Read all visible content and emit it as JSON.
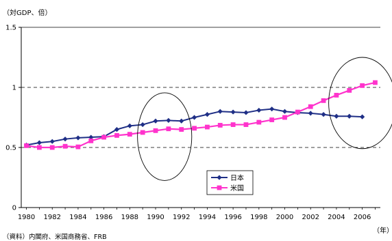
{
  "chart_data": {
    "type": "line",
    "unit_label": "（対GDP、倍）",
    "xlabel": "（年）",
    "source": "（資料）内閣府、米国商務省、FRB",
    "ylim": [
      0,
      1.5
    ],
    "yticks": [
      "0",
      "0.5",
      "1",
      "1.5"
    ],
    "dashed_gridlines": [
      0.5,
      1.0
    ],
    "xlim": [
      1979.6,
      2007.4
    ],
    "xticks": [
      1980,
      1982,
      1984,
      1986,
      1988,
      1990,
      1992,
      1994,
      1996,
      1998,
      2000,
      2002,
      2004,
      2006
    ],
    "legend_position": "center-bottom",
    "series": [
      {
        "name": "日本",
        "color": "#1f2f86",
        "marker": "diamond",
        "x": [
          1980,
          1981,
          1982,
          1983,
          1984,
          1985,
          1986,
          1987,
          1988,
          1989,
          1990,
          1991,
          1992,
          1993,
          1994,
          1995,
          1996,
          1997,
          1998,
          1999,
          2000,
          2001,
          2002,
          2003,
          2004,
          2005,
          2006
        ],
        "values": [
          0.52,
          0.54,
          0.55,
          0.57,
          0.58,
          0.585,
          0.59,
          0.65,
          0.68,
          0.69,
          0.72,
          0.725,
          0.72,
          0.75,
          0.775,
          0.8,
          0.795,
          0.79,
          0.81,
          0.82,
          0.8,
          0.79,
          0.785,
          0.775,
          0.76,
          0.76,
          0.755
        ]
      },
      {
        "name": "米国",
        "color": "#ff33cc",
        "marker": "square",
        "x": [
          1980,
          1981,
          1982,
          1983,
          1984,
          1985,
          1986,
          1987,
          1988,
          1989,
          1990,
          1991,
          1992,
          1993,
          1994,
          1995,
          1996,
          1997,
          1998,
          1999,
          2000,
          2001,
          2002,
          2003,
          2004,
          2005,
          2006,
          2007
        ],
        "values": [
          0.515,
          0.5,
          0.5,
          0.51,
          0.505,
          0.555,
          0.585,
          0.6,
          0.61,
          0.625,
          0.64,
          0.655,
          0.65,
          0.66,
          0.67,
          0.685,
          0.69,
          0.69,
          0.71,
          0.73,
          0.75,
          0.795,
          0.84,
          0.89,
          0.935,
          0.975,
          1.015,
          1.04
        ]
      }
    ],
    "annotations": [
      {
        "shape": "ellipse",
        "cx": 1990.7,
        "cy": 0.59,
        "rx": 2.1,
        "ry": 0.365
      },
      {
        "shape": "ellipse",
        "cx": 2006.0,
        "cy": 0.87,
        "rx": 2.6,
        "ry": 0.38
      }
    ]
  }
}
